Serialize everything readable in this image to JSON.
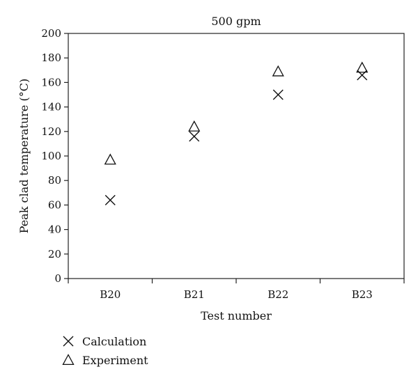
{
  "chart_data": {
    "type": "scatter",
    "title": "500 gpm",
    "xlabel": "Test number",
    "ylabel": "Peak clad temperature (°C)",
    "categories": [
      "B20",
      "B21",
      "B22",
      "B23"
    ],
    "ylim": [
      0,
      200
    ],
    "yticks": [
      0,
      20,
      40,
      60,
      80,
      100,
      120,
      140,
      160,
      180,
      200
    ],
    "grid": false,
    "legend_position": "bottom-left",
    "series": [
      {
        "name": "Calculation",
        "marker": "x",
        "values": [
          64,
          116,
          150,
          166
        ]
      },
      {
        "name": "Experiment",
        "marker": "triangle",
        "values": [
          97,
          124,
          169,
          172
        ]
      }
    ]
  }
}
